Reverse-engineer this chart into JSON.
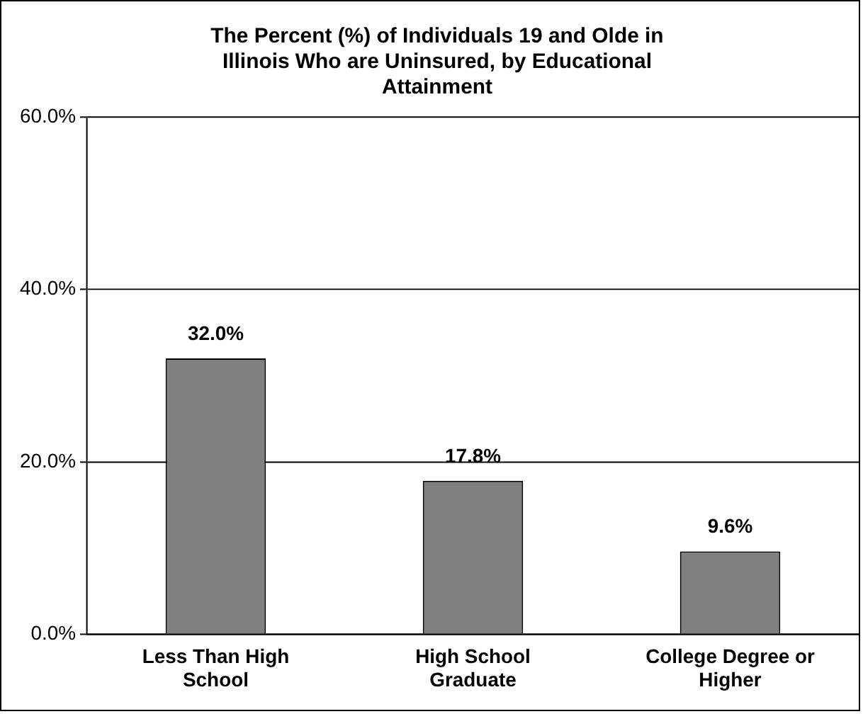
{
  "chart_data": {
    "type": "bar",
    "title": "The Percent (%) of Individuals 19 and Olde in Illinois Who are Uninsured, by Educational Attainment",
    "categories": [
      "Less Than High School",
      "High School Graduate",
      "College Degree or Higher"
    ],
    "values": [
      32.0,
      17.8,
      9.6
    ],
    "value_labels": [
      "32.0%",
      "17.8%",
      "9.6%"
    ],
    "color": "#808080",
    "ylim": [
      0,
      60
    ],
    "yticks": [
      {
        "value": 0,
        "label": "0.0%"
      },
      {
        "value": 20,
        "label": "20.0%"
      },
      {
        "value": 40,
        "label": "40.0%"
      },
      {
        "value": 60,
        "label": "60.0%"
      }
    ],
    "grid": "y",
    "legend": false
  }
}
